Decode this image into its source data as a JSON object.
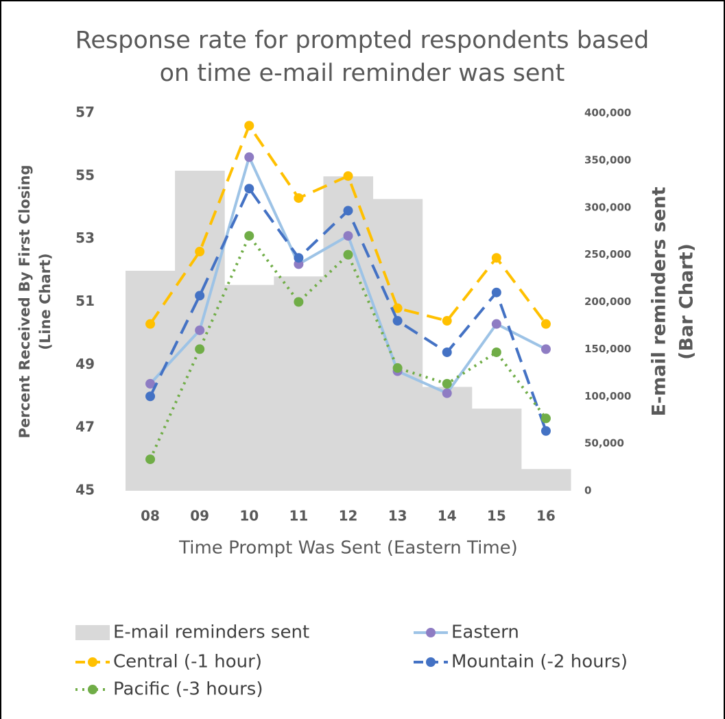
{
  "chart_data": {
    "type": "combo",
    "title": [
      "Response rate for prompted respondents based",
      "on time e-mail reminder was sent"
    ],
    "xlabel": "Time Prompt Was Sent (Eastern Time)",
    "ylabel": [
      "Percent Received By First Closing",
      "(Line Chart)"
    ],
    "y2label": [
      "E-mail reminders sent",
      "(Bar Chart)"
    ],
    "categories": [
      "08",
      "09",
      "10",
      "11",
      "12",
      "13",
      "14",
      "15",
      "16"
    ],
    "ylim": [
      45,
      57
    ],
    "yticks": [
      45,
      47,
      49,
      51,
      53,
      55,
      57
    ],
    "y2lim": [
      0,
      400000
    ],
    "y2ticks": [
      0,
      {
        "value": 50000,
        "label": "50,000"
      },
      {
        "value": 100000,
        "label": "100,000"
      },
      {
        "value": 150000,
        "label": "150,000"
      },
      {
        "value": 200000,
        "label": "200,000"
      },
      {
        "value": 250000,
        "label": "250,000"
      },
      {
        "value": 300000,
        "label": "300,000"
      },
      {
        "value": 350000,
        "label": "350,000"
      },
      {
        "value": 400000,
        "label": "400,000"
      }
    ],
    "legend": "bottom",
    "series": [
      {
        "name": "E-mail reminders sent",
        "type": "bar",
        "axis": "y2",
        "color": "#d9d9d9",
        "values": [
          233000,
          339000,
          218000,
          227000,
          333000,
          309000,
          110000,
          87000,
          23000
        ]
      },
      {
        "name": "Eastern",
        "type": "line",
        "style": "solid",
        "color": "#9dc3e6",
        "marker_color": "#8e7cc3",
        "values": [
          48.4,
          50.1,
          55.6,
          52.2,
          53.1,
          48.8,
          48.1,
          50.3,
          49.5
        ]
      },
      {
        "name": "Central (-1 hour)",
        "type": "line",
        "style": "dash",
        "color": "#ffc000",
        "marker_color": "#ffc000",
        "values": [
          50.3,
          52.6,
          56.6,
          54.3,
          55.0,
          50.8,
          50.4,
          52.4,
          50.3
        ]
      },
      {
        "name": "Mountain (-2 hours)",
        "type": "line",
        "style": "dash",
        "color": "#4472c4",
        "marker_color": "#4472c4",
        "values": [
          48.0,
          51.2,
          54.6,
          52.4,
          53.9,
          50.4,
          49.4,
          51.3,
          46.9
        ]
      },
      {
        "name": "Pacific (-3 hours)",
        "type": "line",
        "style": "dot",
        "color": "#70ad47",
        "marker_color": "#70ad47",
        "values": [
          46.0,
          49.5,
          53.1,
          51.0,
          52.5,
          48.9,
          48.4,
          49.4,
          47.3
        ]
      }
    ]
  }
}
